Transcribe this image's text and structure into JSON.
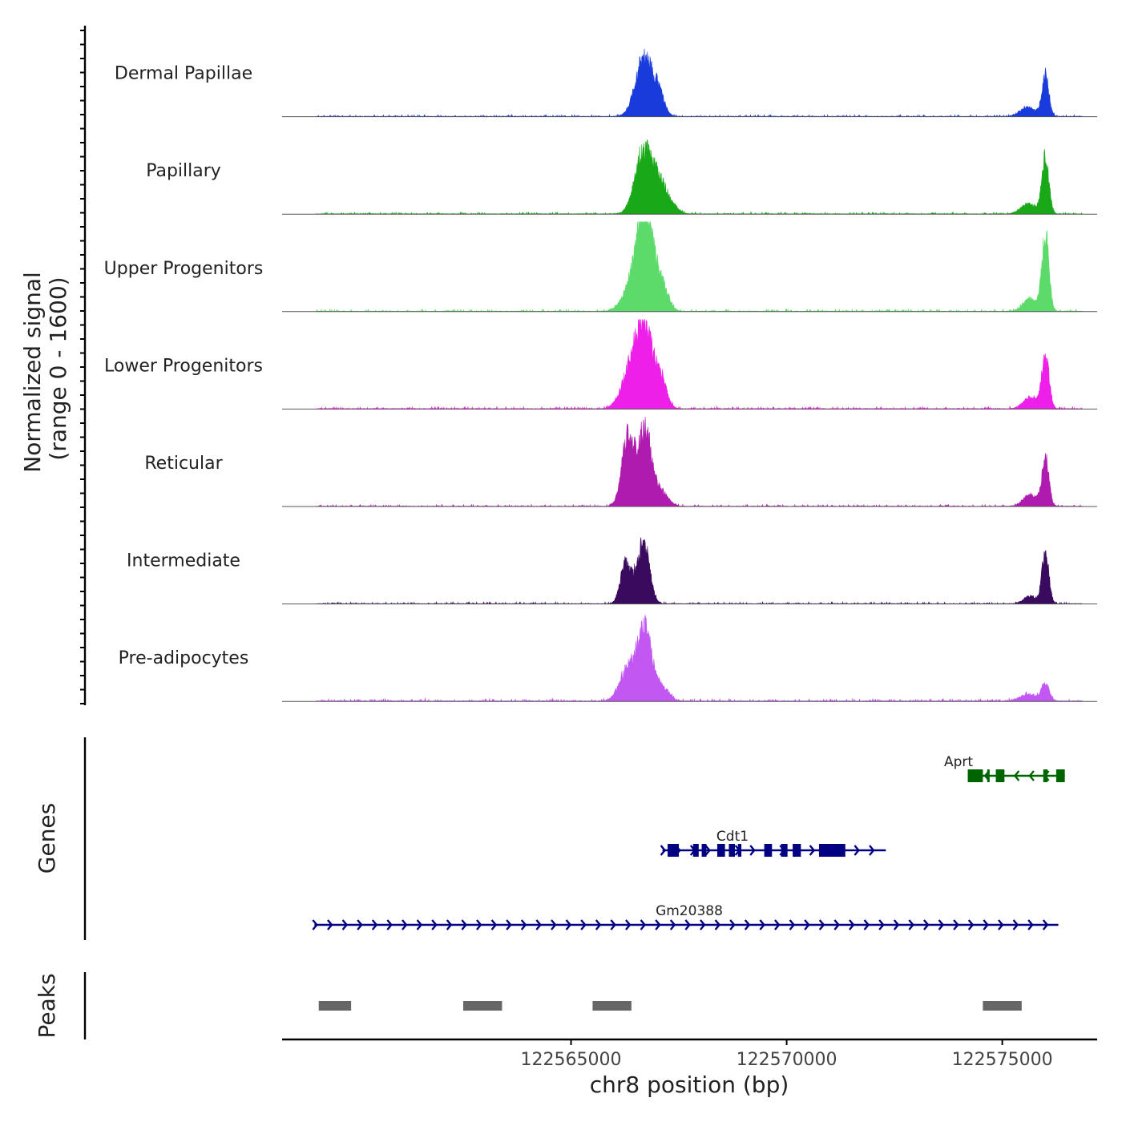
{
  "chart_data": {
    "type": "area",
    "title": "",
    "signal_axis_label_line1": "Normalized signal",
    "signal_axis_label_line2": "(range 0 - 1600)",
    "signal_range": [
      0,
      1600
    ],
    "genes_axis_label": "Genes",
    "peaks_axis_label": "Peaks",
    "xlabel": "chr8 position (bp)",
    "xlim": [
      122558300,
      122577200
    ],
    "x_ticks": [
      122565000,
      122570000,
      122575000
    ],
    "x_tick_labels": [
      "122565000",
      "122570000",
      "122575000"
    ],
    "tracks": [
      {
        "name": "Dermal Papillae",
        "color": "#1A3BDB",
        "peaks": [
          [
            122566700,
            1050,
            200
          ],
          [
            122567050,
            320,
            120
          ],
          [
            122576000,
            720,
            80
          ],
          [
            122575600,
            160,
            180
          ]
        ],
        "baseline": 12
      },
      {
        "name": "Papillary",
        "color": "#18A818",
        "peaks": [
          [
            122566700,
            1150,
            200
          ],
          [
            122567050,
            420,
            130
          ],
          [
            122567300,
            200,
            150
          ],
          [
            122576000,
            1000,
            80
          ],
          [
            122575600,
            170,
            170
          ]
        ],
        "baseline": 12
      },
      {
        "name": "Upper Progenitors",
        "color": "#5CDB6A",
        "peaks": [
          [
            122566720,
            1600,
            180
          ],
          [
            122566450,
            500,
            220
          ],
          [
            122567100,
            450,
            150
          ],
          [
            122576000,
            1350,
            80
          ],
          [
            122575650,
            230,
            160
          ]
        ],
        "baseline": 15
      },
      {
        "name": "Lower Progenitors",
        "color": "#EE1FE8",
        "peaks": [
          [
            122566700,
            1450,
            200
          ],
          [
            122566350,
            550,
            200
          ],
          [
            122567100,
            420,
            130
          ],
          [
            122576000,
            950,
            85
          ],
          [
            122575650,
            200,
            160
          ]
        ],
        "baseline": 15
      },
      {
        "name": "Reticular",
        "color": "#AF1AAF",
        "peaks": [
          [
            122566300,
            1000,
            130
          ],
          [
            122566740,
            1000,
            140
          ],
          [
            122566550,
            550,
            200
          ],
          [
            122567100,
            250,
            150
          ],
          [
            122576000,
            850,
            80
          ],
          [
            122575650,
            200,
            160
          ]
        ],
        "baseline": 12
      },
      {
        "name": "Intermediate",
        "color": "#3A0A5E",
        "peaks": [
          [
            122566250,
            600,
            110
          ],
          [
            122566700,
            880,
            130
          ],
          [
            122566500,
            350,
            180
          ],
          [
            122576000,
            900,
            80
          ],
          [
            122575650,
            130,
            150
          ]
        ],
        "baseline": 12
      },
      {
        "name": "Pre-adipocytes",
        "color": "#C257F2",
        "peaks": [
          [
            122566720,
            1200,
            150
          ],
          [
            122566350,
            620,
            200
          ],
          [
            122567100,
            250,
            160
          ],
          [
            122576000,
            300,
            90
          ],
          [
            122575600,
            120,
            180
          ]
        ],
        "baseline": 18
      }
    ],
    "genes": [
      {
        "name": "Aprt",
        "strand": "-",
        "color": "#006400",
        "start": 122574200,
        "end": 122576450,
        "exons": [
          [
            122574200,
            122574550
          ],
          [
            122574650,
            122574700
          ],
          [
            122574850,
            122575050
          ],
          [
            122575950,
            122576050
          ],
          [
            122576250,
            122576450
          ]
        ]
      },
      {
        "name": "Cdt1",
        "strand": "+",
        "color": "#000080",
        "start": 122567120,
        "end": 122572300,
        "exons": [
          [
            122567240,
            122567500
          ],
          [
            122567830,
            122567960
          ],
          [
            122568030,
            122568140
          ],
          [
            122568390,
            122568570
          ],
          [
            122568660,
            122568800
          ],
          [
            122568870,
            122568950
          ],
          [
            122569480,
            122569660
          ],
          [
            122569870,
            122570020
          ],
          [
            122570140,
            122570330
          ],
          [
            122570750,
            122571360
          ]
        ]
      },
      {
        "name": "Gm20388",
        "strand": "+",
        "color": "#000080",
        "start": 122559050,
        "end": 122576300,
        "exons": []
      }
    ],
    "peak_regions": [
      [
        122559150,
        122559900
      ],
      [
        122562500,
        122563400
      ],
      [
        122565500,
        122566400
      ],
      [
        122574550,
        122575450
      ]
    ]
  }
}
